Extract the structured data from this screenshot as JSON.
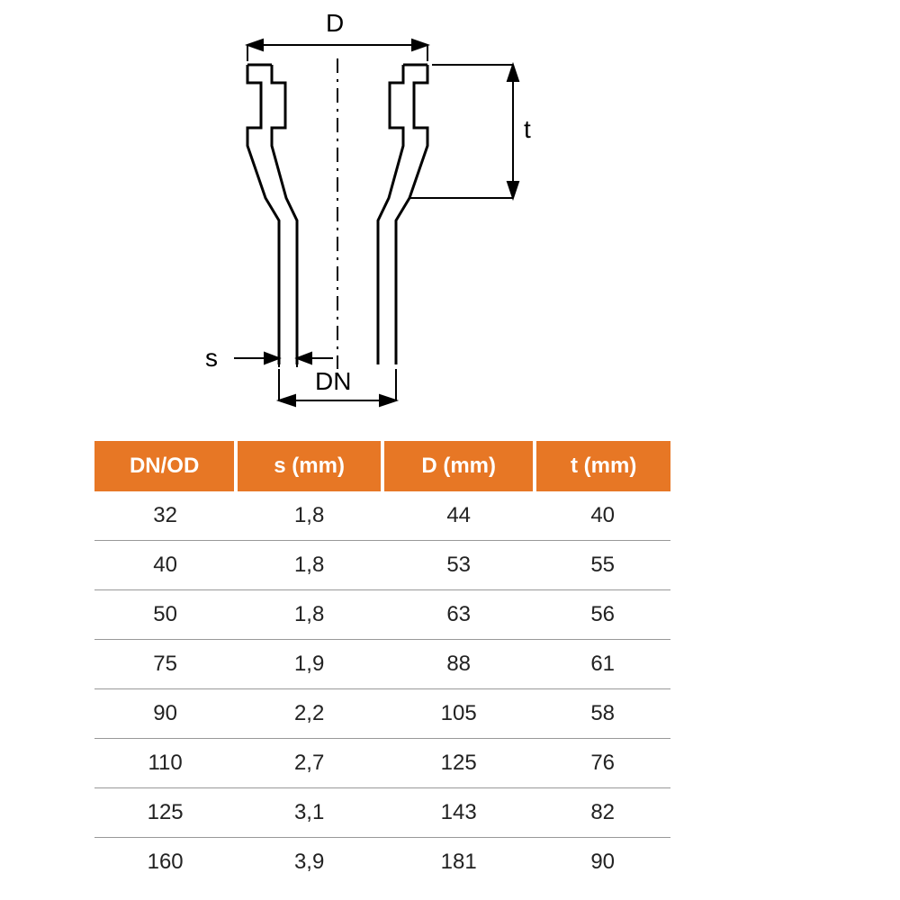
{
  "diagram": {
    "labels": {
      "D": "D",
      "t": "t",
      "s": "s",
      "DN": "DN"
    },
    "stroke": "#000000",
    "stroke_width_main": 3,
    "stroke_width_dim": 2,
    "dash_pattern": "12,6,3,6",
    "font_size_label": 28,
    "font_family": "Arial"
  },
  "table": {
    "header_bg": "#e77725",
    "header_fg": "#ffffff",
    "row_border": "#999999",
    "cell_fg": "#222222",
    "font_size_header": 24,
    "font_size_cell": 24,
    "columns": [
      "DN/OD",
      "s (mm)",
      "D (mm)",
      "t (mm)"
    ],
    "rows": [
      [
        "32",
        "1,8",
        "44",
        "40"
      ],
      [
        "40",
        "1,8",
        "53",
        "55"
      ],
      [
        "50",
        "1,8",
        "63",
        "56"
      ],
      [
        "75",
        "1,9",
        "88",
        "61"
      ],
      [
        "90",
        "2,2",
        "105",
        "58"
      ],
      [
        "110",
        "2,7",
        "125",
        "76"
      ],
      [
        "125",
        "3,1",
        "143",
        "82"
      ],
      [
        "160",
        "3,9",
        "181",
        "90"
      ]
    ]
  }
}
